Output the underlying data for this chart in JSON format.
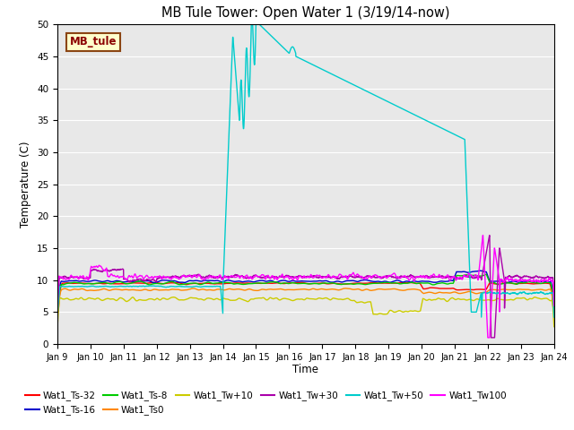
{
  "title": "MB Tule Tower: Open Water 1 (3/19/14-now)",
  "xlabel": "Time",
  "ylabel": "Temperature (C)",
  "ylim": [
    0,
    50
  ],
  "yticks": [
    0,
    5,
    10,
    15,
    20,
    25,
    30,
    35,
    40,
    45,
    50
  ],
  "xtick_labels": [
    "Jan 9",
    "Jan 10",
    "Jan 11",
    "Jan 12",
    "Jan 13",
    "Jan 14",
    "Jan 15",
    "Jan 16",
    "Jan 17",
    "Jan 18",
    "Jan 19",
    "Jan 20",
    "Jan 21",
    "Jan 22",
    "Jan 23",
    "Jan 24"
  ],
  "background_color": "#e8e8e8",
  "legend_label_box": "MB_tule",
  "legend_box_facecolor": "#ffffcc",
  "legend_box_edgecolor": "#8B4513",
  "legend_box_textcolor": "#8B0000",
  "series": [
    {
      "label": "Wat1_Ts-32",
      "color": "#ff0000"
    },
    {
      "label": "Wat1_Ts-16",
      "color": "#0000cc"
    },
    {
      "label": "Wat1_Ts-8",
      "color": "#00cc00"
    },
    {
      "label": "Wat1_Ts0",
      "color": "#ff8800"
    },
    {
      "label": "Wat1_Tw+10",
      "color": "#cccc00"
    },
    {
      "label": "Wat1_Tw+30",
      "color": "#aa00aa"
    },
    {
      "label": "Wat1_Tw+50",
      "color": "#00cccc"
    },
    {
      "label": "Wat1_Tw100",
      "color": "#ff00ff"
    }
  ],
  "legend_ncol": 6,
  "figsize": [
    6.4,
    4.8
  ],
  "dpi": 100
}
